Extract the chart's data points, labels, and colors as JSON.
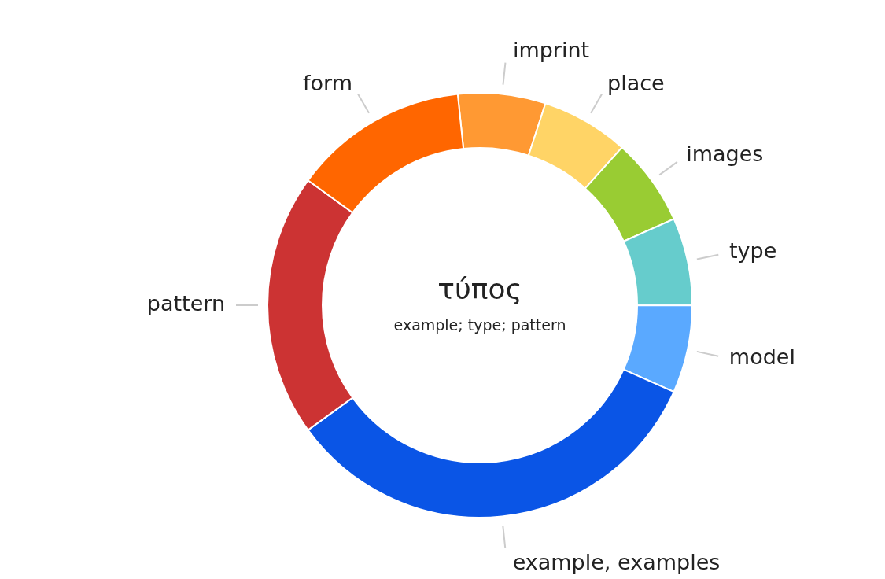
{
  "chart_data": {
    "type": "donut",
    "title": "τύπος",
    "subtitle": "example; type; pattern",
    "categories": [
      "imprint",
      "place",
      "images",
      "type",
      "model",
      "example, examples",
      "pattern",
      "form"
    ],
    "values": [
      6.67,
      6.67,
      6.67,
      6.67,
      6.67,
      33.32,
      20,
      13.33
    ],
    "colors": [
      "#ff9933",
      "#ffd466",
      "#99cc33",
      "#66cccc",
      "#5aa9ff",
      "#0a55e6",
      "#cc3333",
      "#ff6600"
    ]
  }
}
